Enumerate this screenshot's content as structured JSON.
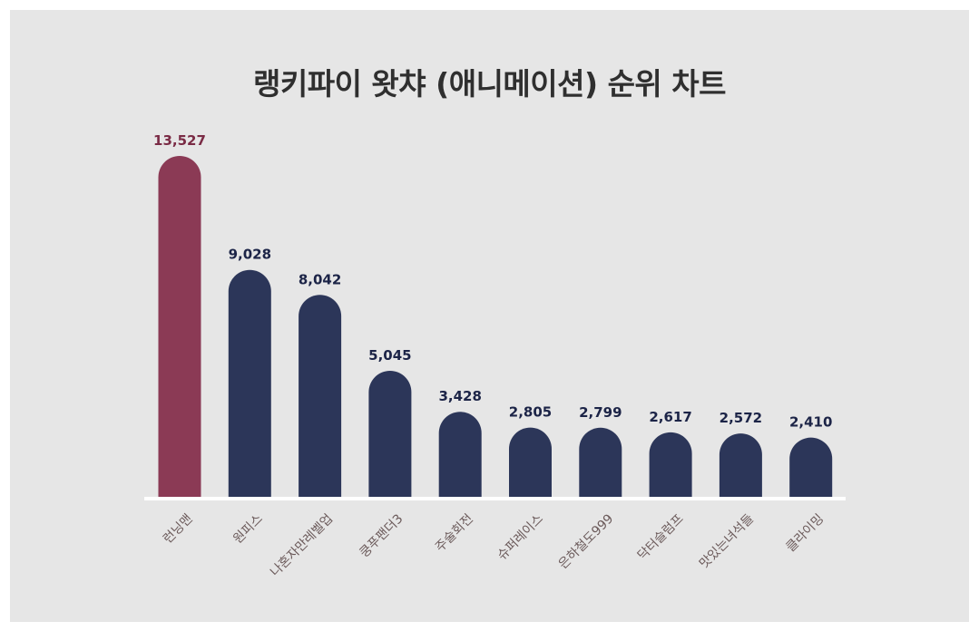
{
  "chart_data": {
    "type": "bar",
    "title": "랭키파이 왓챠 (애니메이션) 순위 차트",
    "categories": [
      "런닝맨",
      "원피스",
      "나혼자만레벨업",
      "쿵푸팬더3",
      "주술회전",
      "슈퍼레이스",
      "은하철도999",
      "닥터슬럼프",
      "맛있는녀석들",
      "클라이밍"
    ],
    "values": [
      13527,
      9028,
      8042,
      5045,
      3428,
      2805,
      2799,
      2617,
      2572,
      2410
    ],
    "value_labels": [
      "13,527",
      "9,028",
      "8,042",
      "5,045",
      "3,428",
      "2,805",
      "2,799",
      "2,617",
      "2,572",
      "2,410"
    ],
    "xlabel": "",
    "ylabel": "",
    "ylim": [
      0,
      13527
    ],
    "grid": false,
    "colors": {
      "highlight_bar": "#8b3a55",
      "bar": "#2c3659",
      "highlight_label": "#7a2b45",
      "label": "#1c2447",
      "category_text": "#6b5a5a",
      "baseline": "#ffffff",
      "background": "#e6e6e6"
    }
  }
}
